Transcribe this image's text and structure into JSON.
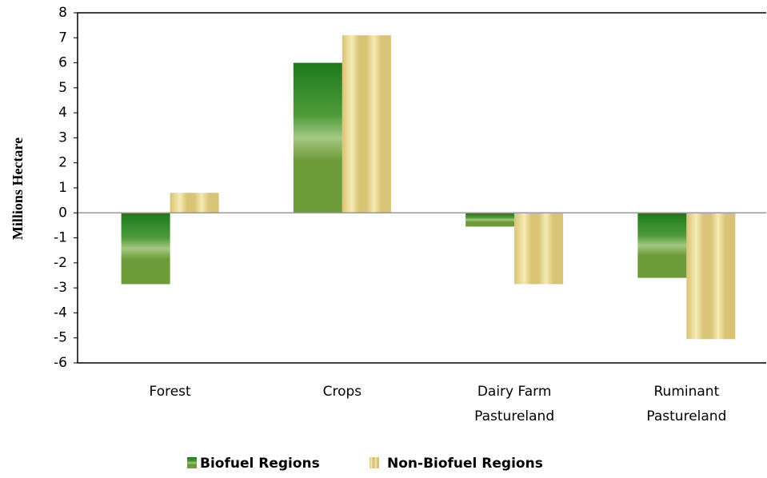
{
  "chart_data": {
    "type": "bar",
    "y_label": "Millions Hectare",
    "categories": [
      "Forest",
      "Crops",
      "Dairy Farm Pastureland",
      "Ruminant Pastureland"
    ],
    "series": [
      {
        "name": "Biofuel Regions",
        "color": "#6e9b3a",
        "values": [
          -2.85,
          6.0,
          -0.55,
          -2.6
        ]
      },
      {
        "name": "Non-Biofuel Regions",
        "color": "#d9c374",
        "values": [
          0.8,
          7.1,
          -2.85,
          -5.05
        ]
      }
    ],
    "ylim": [
      -6,
      8
    ],
    "yticks": [
      -6,
      -5,
      -4,
      -3,
      -2,
      -1,
      0,
      1,
      2,
      3,
      4,
      5,
      6,
      7,
      8
    ],
    "legend": "bottom"
  }
}
